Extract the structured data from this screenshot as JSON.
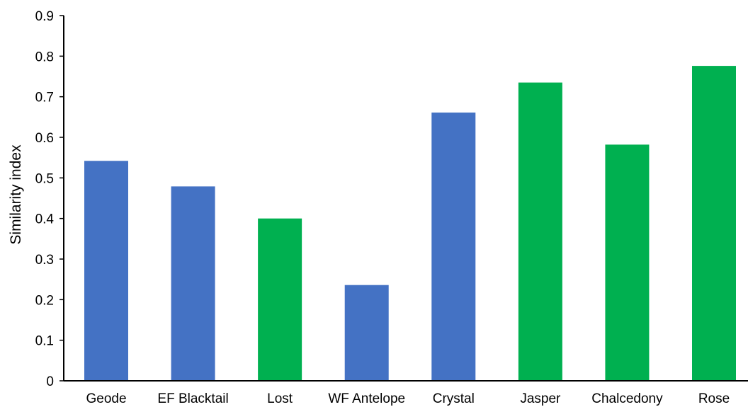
{
  "chart_data": {
    "type": "bar",
    "title": "",
    "xlabel": "",
    "ylabel": "Similarity index",
    "ylim": [
      0,
      0.9
    ],
    "yticks": [
      "0",
      "0.1",
      "0.2",
      "0.3",
      "0.4",
      "0.5",
      "0.6",
      "0.7",
      "0.8",
      "0.9"
    ],
    "grid": false,
    "legend": "none",
    "categories": [
      "Geode",
      "EF Blacktail",
      "Lost",
      "WF Antelope",
      "Crystal",
      "Jasper",
      "Chalcedony",
      "Rose"
    ],
    "values": [
      0.542,
      0.479,
      0.4,
      0.236,
      0.661,
      0.735,
      0.582,
      0.776
    ],
    "bar_colors": [
      "#4472C4",
      "#4472C4",
      "#00B050",
      "#4472C4",
      "#4472C4",
      "#00B050",
      "#00B050",
      "#00B050"
    ]
  }
}
